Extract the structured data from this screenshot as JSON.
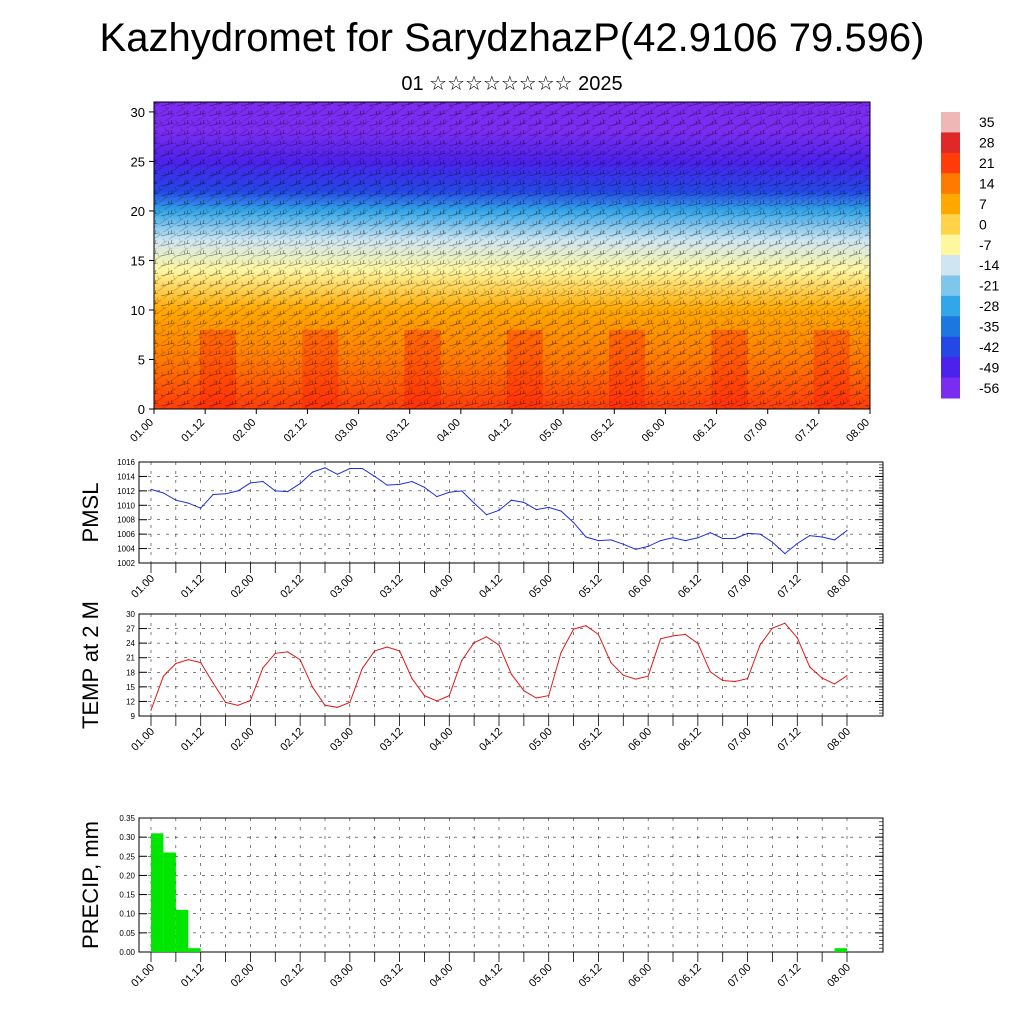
{
  "title": "Kazhydromet for SarydzhazP(42.9106 79.596)",
  "subtitle": "01 ☆☆☆☆☆☆☆☆ 2025",
  "chart_data": [
    {
      "type": "heatmap",
      "title": "",
      "xlabel": "",
      "ylabel": "",
      "x_ticks": [
        "01.00",
        "01.12",
        "02.00",
        "02.12",
        "03.00",
        "03.12",
        "04.00",
        "04.12",
        "05.00",
        "05.12",
        "06.00",
        "06.12",
        "07.00",
        "07.12",
        "08.00"
      ],
      "y_ticks": [
        0,
        5,
        10,
        15,
        20,
        25,
        30
      ],
      "ylim": [
        0,
        31
      ],
      "colorbar_labels": [
        35,
        28,
        21,
        14,
        7,
        0,
        -7,
        -14,
        -21,
        -28,
        -35,
        -42,
        -49,
        -56
      ],
      "colorbar_colors": [
        "#f0b7b7",
        "#e02828",
        "#ff3c0a",
        "#ff7a00",
        "#ffa800",
        "#ffd24a",
        "#fff6a0",
        "#cfe6f2",
        "#7fc6ec",
        "#33a6e8",
        "#1c78e0",
        "#2447e6",
        "#4b22ec",
        "#7a2cf0"
      ],
      "vertical_profile": [
        {
          "level": 0,
          "value": 21
        },
        {
          "level": 5,
          "value": 14
        },
        {
          "level": 10,
          "value": 7
        },
        {
          "level": 14,
          "value": -7
        },
        {
          "level": 17,
          "value": -14
        },
        {
          "level": 20,
          "value": -28
        },
        {
          "level": 22,
          "value": -42
        },
        {
          "level": 25,
          "value": -49
        },
        {
          "level": 28,
          "value": -56
        },
        {
          "level": 31,
          "value": -56
        }
      ],
      "grid": true,
      "overlay": "wind barbs"
    },
    {
      "type": "line",
      "ylabel": "PMSL",
      "xlabel": "",
      "ylim": [
        1002,
        1016
      ],
      "y_ticks": [
        1002,
        1004,
        1006,
        1008,
        1010,
        1012,
        1014,
        1016
      ],
      "x_ticks": [
        "01.00",
        "01.12",
        "02.00",
        "02.12",
        "03.00",
        "03.12",
        "04.00",
        "04.12",
        "05.00",
        "05.12",
        "06.00",
        "06.12",
        "07.00",
        "07.12",
        "08.00"
      ],
      "x": [
        0,
        3,
        6,
        9,
        12,
        15,
        18,
        21,
        24,
        27,
        30,
        33,
        36,
        39,
        42,
        45,
        48,
        51,
        54,
        57,
        60,
        63,
        66,
        69,
        72,
        75,
        78,
        81,
        84,
        87,
        90,
        93,
        96,
        99,
        102,
        105,
        108,
        111,
        114,
        117,
        120,
        123,
        126,
        129,
        132,
        135,
        138,
        141,
        144,
        147,
        150,
        153,
        156,
        159,
        162,
        165,
        168
      ],
      "values": [
        1012.2,
        1011.7,
        1010.7,
        1010.3,
        1009.6,
        1011.5,
        1011.6,
        1012.0,
        1013.1,
        1013.3,
        1012.0,
        1011.9,
        1013.0,
        1014.6,
        1015.2,
        1014.3,
        1015.1,
        1015.1,
        1014.0,
        1012.8,
        1012.9,
        1013.3,
        1012.5,
        1011.2,
        1011.8,
        1012.0,
        1010.3,
        1008.7,
        1009.3,
        1010.7,
        1010.4,
        1009.4,
        1009.7,
        1009.2,
        1007.6,
        1005.6,
        1005.1,
        1005.2,
        1004.6,
        1003.9,
        1004.3,
        1005.1,
        1005.5,
        1005.1,
        1005.5,
        1006.2,
        1005.4,
        1005.4,
        1006.1,
        1006.0,
        1004.9,
        1003.3,
        1004.7,
        1005.8,
        1005.6,
        1005.2,
        1006.5
      ],
      "color": "#1f2ee0",
      "grid": true
    },
    {
      "type": "line",
      "ylabel": "TEMP at 2 M",
      "xlabel": "",
      "ylim": [
        9,
        30
      ],
      "y_ticks": [
        9,
        12,
        15,
        18,
        21,
        24,
        27,
        30
      ],
      "x_ticks": [
        "01.00",
        "01.12",
        "02.00",
        "02.12",
        "03.00",
        "03.12",
        "04.00",
        "04.12",
        "05.00",
        "05.12",
        "06.00",
        "06.12",
        "07.00",
        "07.12",
        "08.00"
      ],
      "x": [
        0,
        3,
        6,
        9,
        12,
        15,
        18,
        21,
        24,
        27,
        30,
        33,
        36,
        39,
        42,
        45,
        48,
        51,
        54,
        57,
        60,
        63,
        66,
        69,
        72,
        75,
        78,
        81,
        84,
        87,
        90,
        93,
        96,
        99,
        102,
        105,
        108,
        111,
        114,
        117,
        120,
        123,
        126,
        129,
        132,
        135,
        138,
        141,
        144,
        147,
        150,
        153,
        156,
        159,
        162,
        165,
        168
      ],
      "values": [
        10.2,
        17.2,
        19.8,
        20.6,
        20.0,
        15.8,
        11.8,
        11.2,
        12.2,
        18.9,
        21.9,
        22.2,
        20.6,
        14.9,
        11.2,
        10.8,
        11.8,
        18.8,
        22.4,
        23.2,
        22.4,
        16.7,
        13.2,
        12.1,
        13.2,
        20.4,
        24.1,
        25.3,
        23.6,
        17.6,
        14.2,
        12.7,
        13.2,
        22.1,
        26.9,
        27.6,
        25.8,
        20.0,
        17.4,
        16.6,
        17.2,
        24.9,
        25.5,
        25.8,
        23.9,
        18.1,
        16.3,
        16.1,
        16.7,
        23.6,
        27.1,
        28.1,
        25.1,
        19.1,
        16.8,
        15.6,
        17.3
      ],
      "color": "#e01818",
      "grid": true
    },
    {
      "type": "bar",
      "ylabel": "PRECIP, mm",
      "xlabel": "",
      "ylim": [
        0,
        0.35
      ],
      "y_ticks": [
        "0.00",
        "0.05",
        "0.10",
        "0.15",
        "0.20",
        "0.25",
        "0.30",
        "0.35"
      ],
      "x_ticks": [
        "01.00",
        "01.12",
        "02.00",
        "02.12",
        "03.00",
        "03.12",
        "04.00",
        "04.12",
        "05.00",
        "05.12",
        "06.00",
        "06.12",
        "07.00",
        "07.12",
        "08.00"
      ],
      "x": [
        3,
        6,
        9,
        12,
        168
      ],
      "values": [
        0.31,
        0.26,
        0.11,
        0.01,
        0.01
      ],
      "color": "#00e600",
      "grid": true
    }
  ]
}
